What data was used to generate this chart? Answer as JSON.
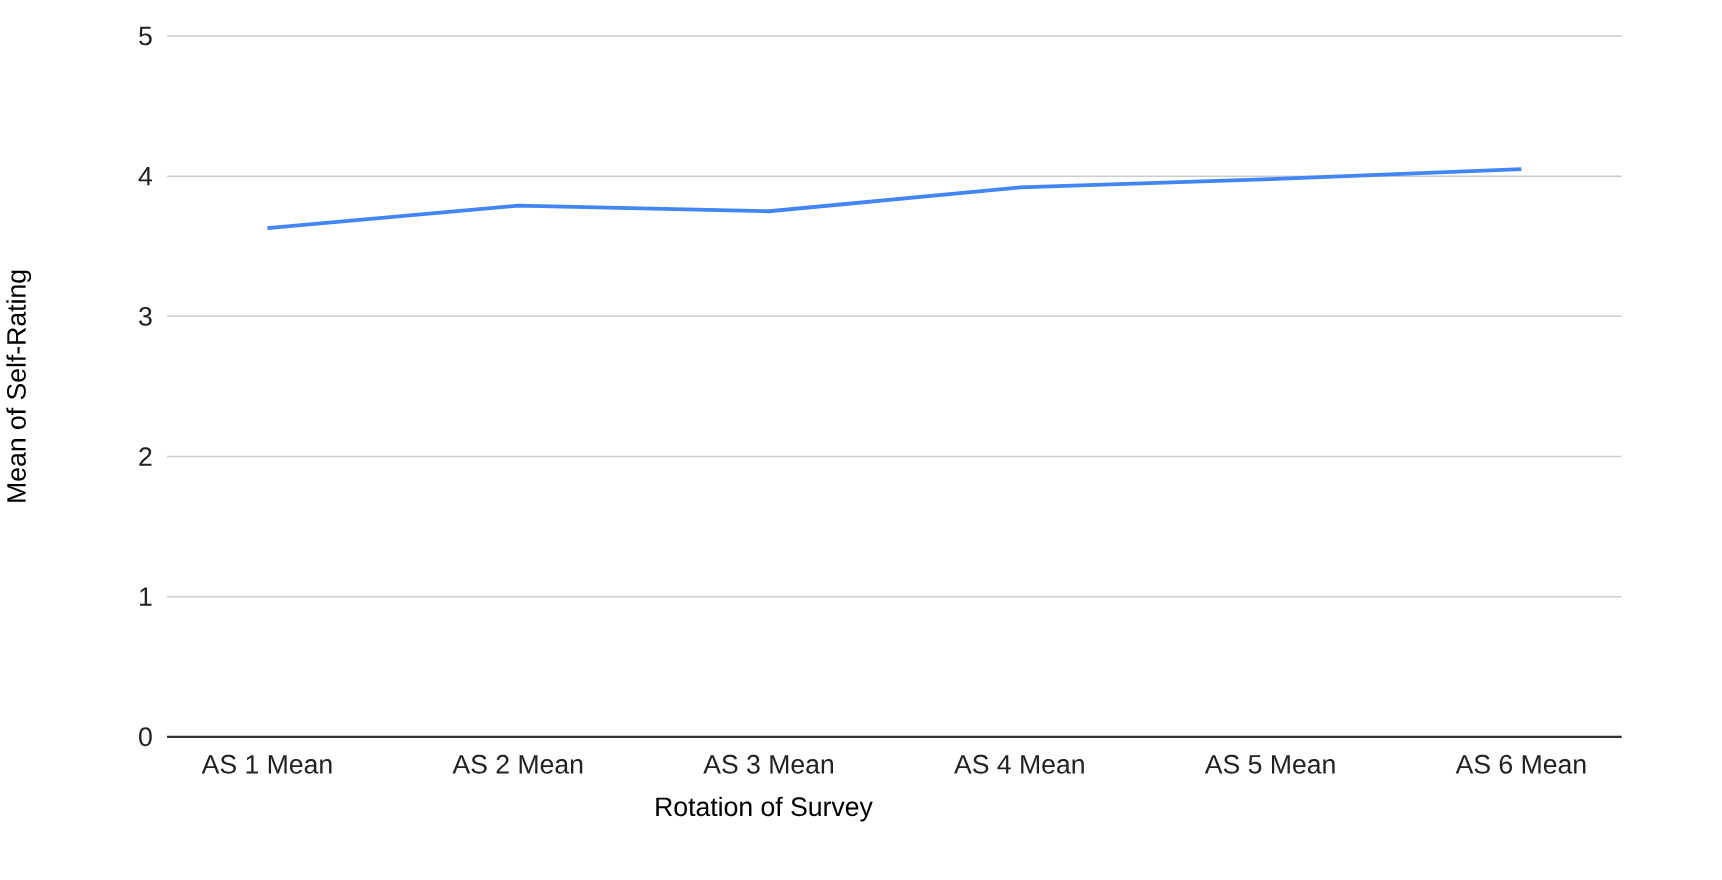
{
  "chart_data": {
    "type": "line",
    "xlabel": "Rotation of Survey",
    "ylabel": "Mean of Self-Rating",
    "categories": [
      "AS 1 Mean",
      "AS 2 Mean",
      "AS 3 Mean",
      "AS 4 Mean",
      "AS 5 Mean",
      "AS 6 Mean"
    ],
    "series": [
      {
        "color": "#4285f4",
        "values": [
          3.63,
          3.79,
          3.75,
          3.92,
          3.98,
          4.05
        ]
      }
    ],
    "ylim": [
      0,
      5
    ],
    "yticks": [
      0,
      1,
      2,
      3,
      4,
      5
    ],
    "grid": "y",
    "marker": "none",
    "line_style": "solid"
  }
}
